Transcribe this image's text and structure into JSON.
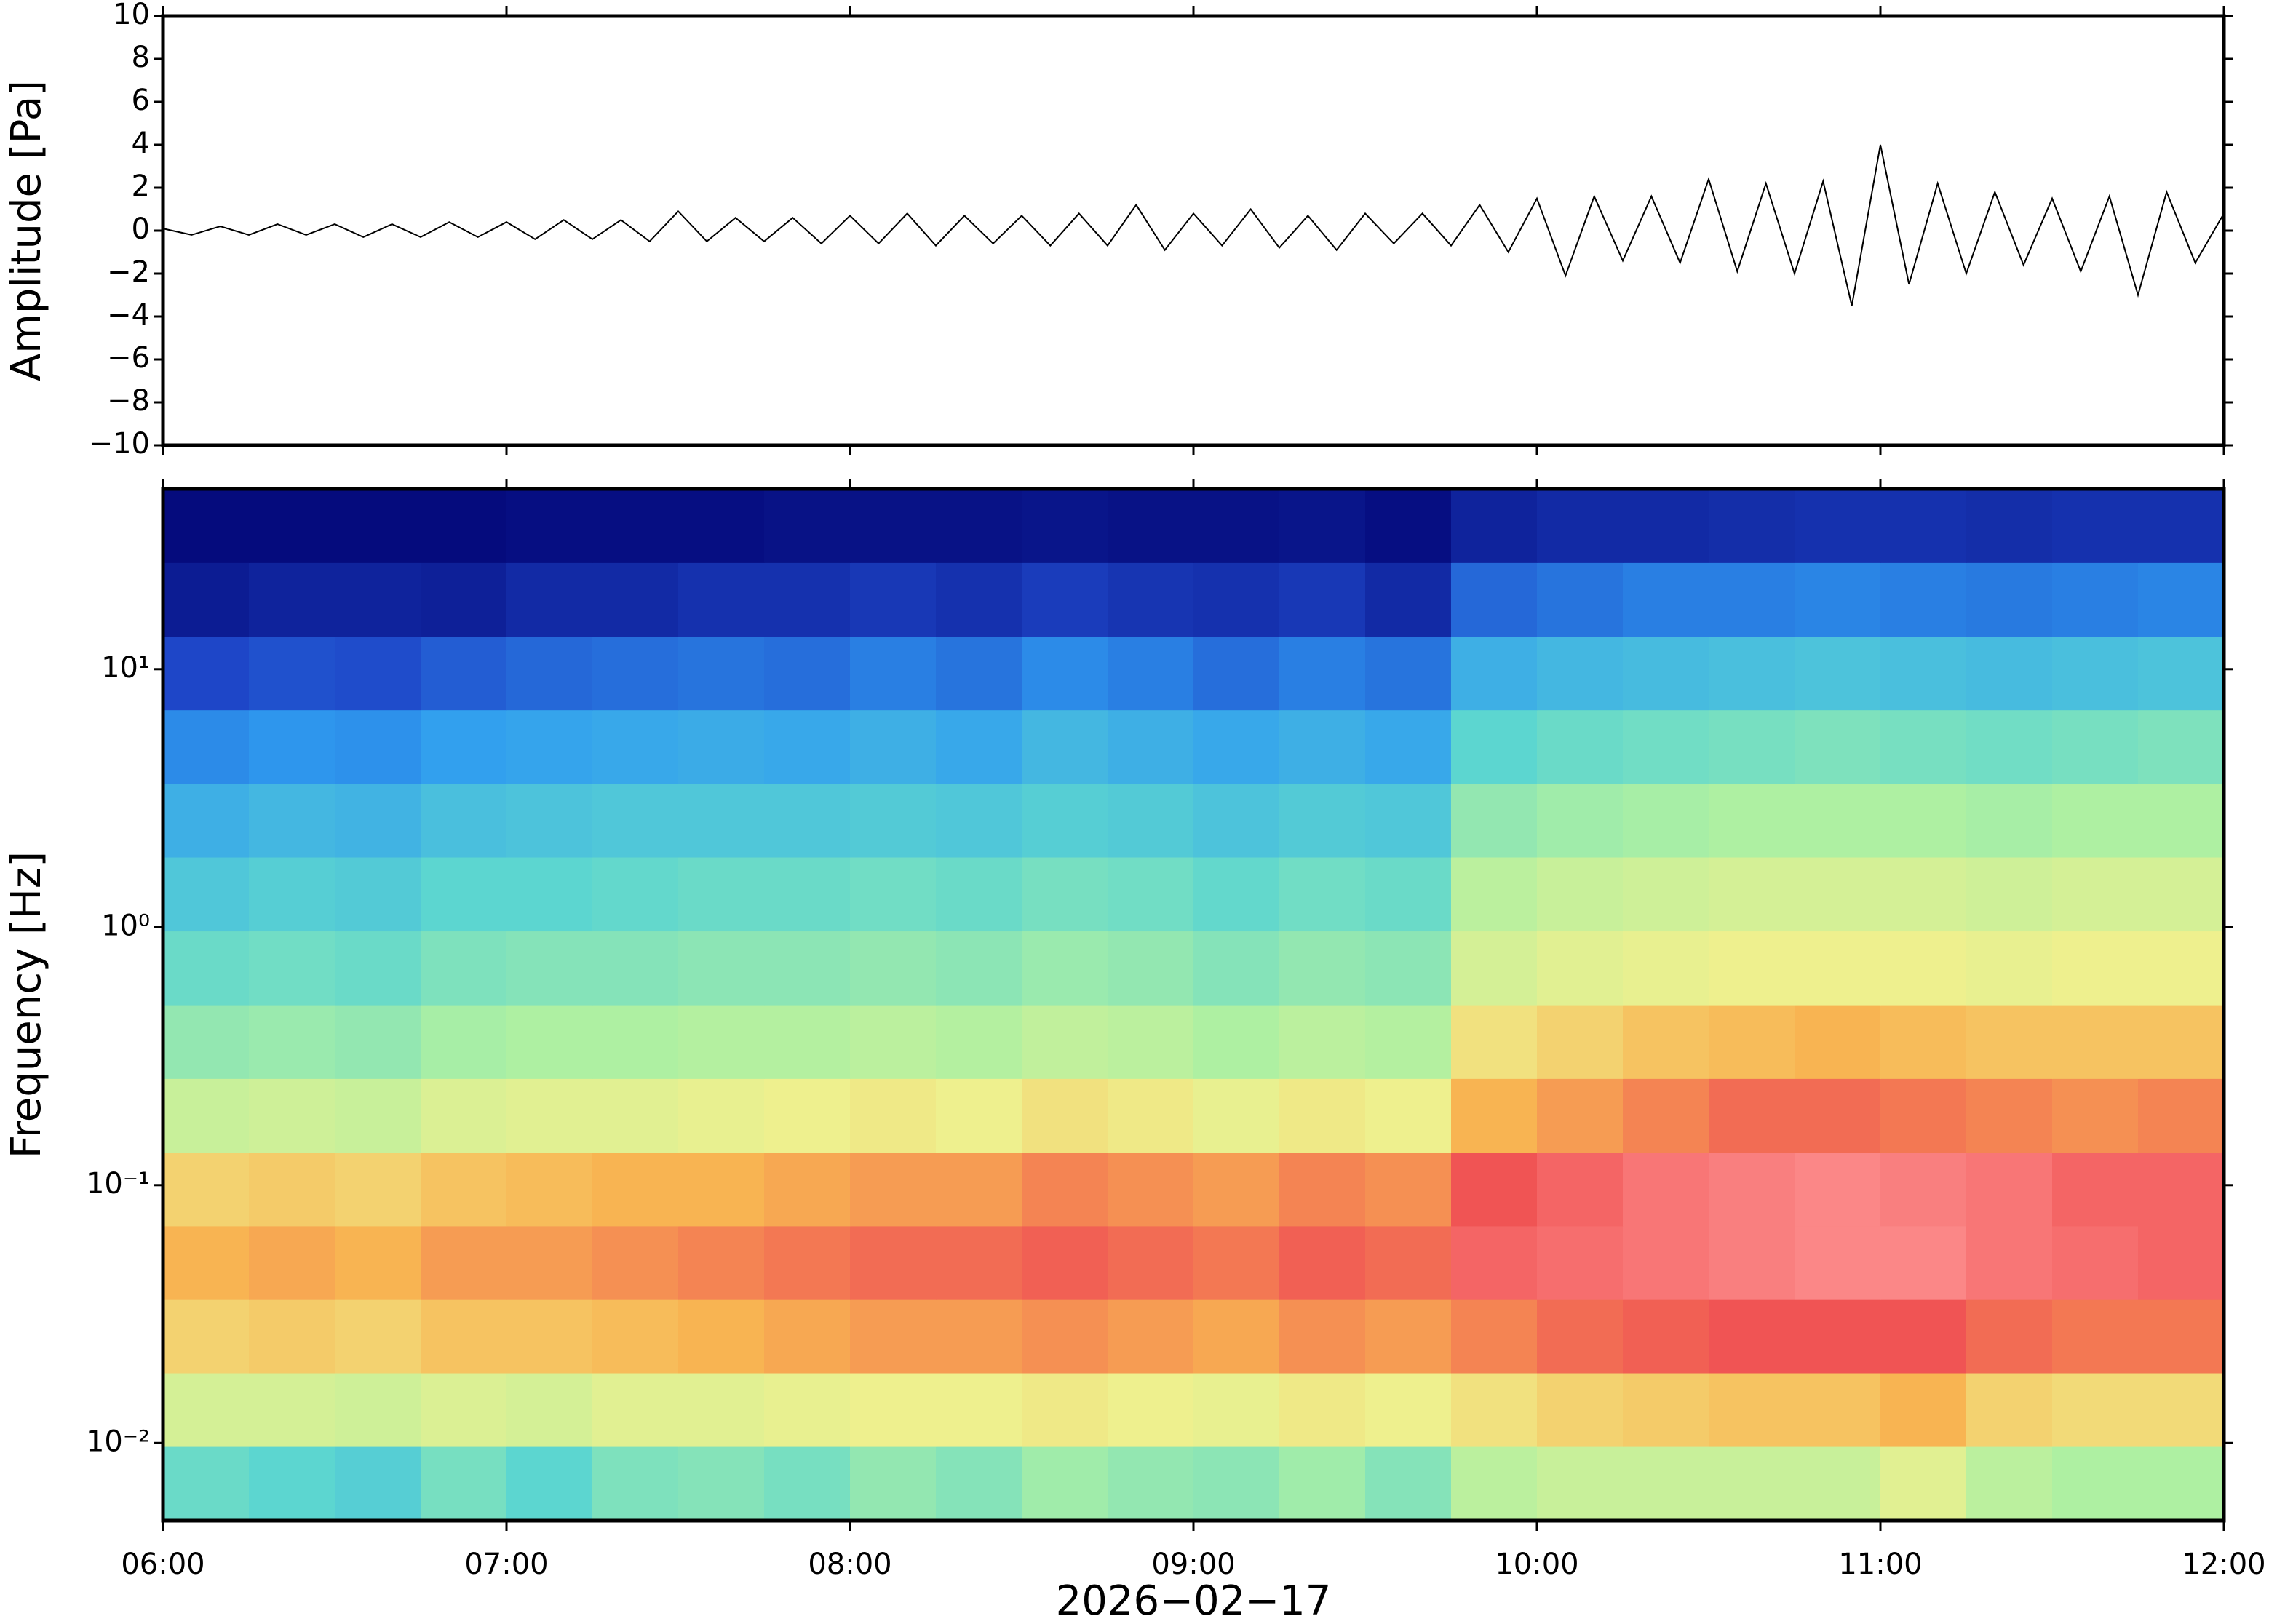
{
  "chart_data": [
    {
      "type": "line",
      "ylabel": "Amplitude [Pa]",
      "color": "#000000",
      "x": [
        0,
        5,
        10,
        15,
        20,
        25,
        30,
        35,
        40,
        45,
        50,
        55,
        60,
        65,
        70,
        75,
        80,
        85,
        90,
        95,
        100,
        105,
        110,
        115,
        120,
        125,
        130,
        135,
        140,
        145,
        150,
        155,
        160,
        165,
        170,
        175,
        180,
        185,
        190,
        195,
        200,
        205,
        210,
        215,
        220,
        225,
        230,
        235,
        240,
        245,
        250,
        255,
        260,
        265,
        270,
        275,
        280,
        285,
        290,
        295,
        300,
        305,
        310,
        315,
        320,
        325,
        330,
        335,
        340,
        345,
        350,
        355,
        360
      ],
      "values": [
        0.1,
        -0.2,
        0.2,
        -0.2,
        0.3,
        -0.2,
        0.3,
        -0.3,
        0.3,
        -0.3,
        0.4,
        -0.3,
        0.4,
        -0.4,
        0.5,
        -0.4,
        0.5,
        -0.5,
        0.9,
        -0.5,
        0.6,
        -0.5,
        0.6,
        -0.6,
        0.7,
        -0.6,
        0.8,
        -0.7,
        0.7,
        -0.6,
        0.7,
        -0.7,
        0.8,
        -0.7,
        1.2,
        -0.9,
        0.8,
        -0.7,
        1.0,
        -0.8,
        0.7,
        -0.9,
        0.8,
        -0.6,
        0.8,
        -0.7,
        1.2,
        -1.0,
        1.5,
        -2.1,
        1.6,
        -1.4,
        1.6,
        -1.5,
        2.4,
        -1.9,
        2.2,
        -2.0,
        2.3,
        -3.5,
        4.0,
        -2.5,
        2.2,
        -2.0,
        1.8,
        -1.6,
        1.5,
        -1.9,
        1.6,
        -3.0,
        1.8,
        -1.5,
        0.8
      ],
      "xlim": [
        0,
        360
      ],
      "xticks": [
        0,
        60,
        120,
        180,
        240,
        300,
        360
      ],
      "ylim": [
        -10,
        10
      ],
      "yticks": [
        {
          "value": -10,
          "label": "−10"
        },
        {
          "value": -8,
          "label": "−8"
        },
        {
          "value": -6,
          "label": "−6"
        },
        {
          "value": -4,
          "label": "−4"
        },
        {
          "value": -2,
          "label": "−2"
        },
        0,
        2,
        4,
        6,
        8,
        10
      ]
    },
    {
      "type": "heatmap",
      "ylabel": "Frequency [Hz]",
      "xlabel": "2026−02−17",
      "log_y": true,
      "x": [
        0,
        15,
        30,
        45,
        60,
        75,
        90,
        105,
        120,
        135,
        150,
        165,
        180,
        195,
        210,
        225,
        240,
        255,
        270,
        285,
        300,
        315,
        330,
        345,
        360
      ],
      "y": [
        0.005,
        0.0097,
        0.0187,
        0.036,
        0.0695,
        0.134,
        0.259,
        0.5,
        0.967,
        1.87,
        3.6,
        6.96,
        13.4,
        25.9,
        50
      ],
      "z": [
        [
          52,
          50,
          48,
          54,
          50,
          55,
          56,
          54,
          58,
          56,
          60,
          58,
          57,
          60,
          56,
          64,
          66,
          66,
          66,
          66,
          70,
          64,
          62,
          62
        ],
        [
          68,
          68,
          67,
          69,
          68,
          70,
          70,
          71,
          72,
          72,
          73,
          72,
          71,
          73,
          72,
          74,
          76,
          77,
          78,
          78,
          80,
          76,
          75,
          75
        ],
        [
          76,
          77,
          76,
          78,
          78,
          79,
          80,
          81,
          82,
          82,
          83,
          82,
          81,
          83,
          82,
          84,
          86,
          87,
          88,
          88,
          88,
          86,
          85,
          85
        ],
        [
          80,
          81,
          80,
          82,
          82,
          83,
          84,
          85,
          86,
          86,
          87,
          86,
          85,
          87,
          86,
          90,
          91,
          92,
          93,
          94,
          94,
          92,
          91,
          90
        ],
        [
          76,
          77,
          76,
          78,
          79,
          80,
          80,
          81,
          82,
          82,
          84,
          83,
          82,
          84,
          83,
          88,
          90,
          92,
          93,
          94,
          93,
          92,
          90,
          90
        ],
        [
          66,
          67,
          66,
          69,
          70,
          70,
          71,
          72,
          73,
          72,
          74,
          73,
          71,
          73,
          72,
          80,
          82,
          84,
          86,
          86,
          85,
          84,
          83,
          84
        ],
        [
          58,
          59,
          58,
          61,
          62,
          62,
          63,
          63,
          64,
          63,
          65,
          64,
          62,
          64,
          63,
          74,
          76,
          78,
          79,
          80,
          79,
          78,
          78,
          78
        ],
        [
          52,
          53,
          52,
          55,
          56,
          56,
          57,
          57,
          58,
          57,
          59,
          58,
          56,
          58,
          57,
          68,
          70,
          71,
          72,
          72,
          72,
          71,
          72,
          72
        ],
        [
          46,
          48,
          47,
          50,
          50,
          51,
          52,
          52,
          53,
          52,
          54,
          53,
          51,
          53,
          52,
          64,
          66,
          67,
          68,
          68,
          68,
          67,
          68,
          68
        ],
        [
          40,
          42,
          41,
          44,
          45,
          46,
          46,
          46,
          47,
          46,
          48,
          47,
          45,
          47,
          46,
          58,
          60,
          61,
          62,
          62,
          62,
          61,
          62,
          62
        ],
        [
          32,
          34,
          33,
          36,
          37,
          38,
          39,
          38,
          40,
          38,
          42,
          40,
          38,
          40,
          38,
          50,
          52,
          53,
          54,
          55,
          54,
          53,
          54,
          55
        ],
        [
          20,
          22,
          21,
          24,
          26,
          27,
          28,
          27,
          30,
          28,
          32,
          30,
          27,
          30,
          28,
          40,
          42,
          43,
          44,
          45,
          44,
          43,
          44,
          45
        ],
        [
          8,
          10,
          10,
          9,
          12,
          12,
          14,
          14,
          16,
          14,
          17,
          15,
          14,
          16,
          12,
          26,
          28,
          30,
          30,
          31,
          30,
          29,
          30,
          31
        ],
        [
          3,
          3,
          3,
          3,
          4,
          4,
          4,
          5,
          5,
          5,
          6,
          5,
          5,
          6,
          4,
          10,
          12,
          12,
          13,
          14,
          14,
          13,
          14,
          14
        ]
      ],
      "colorscale": [
        [
          0,
          "#000070"
        ],
        [
          20,
          "#1e46c8"
        ],
        [
          35,
          "#2f9cf0"
        ],
        [
          50,
          "#5cd6d0"
        ],
        [
          62,
          "#aef0a2"
        ],
        [
          72,
          "#eef08e"
        ],
        [
          80,
          "#f8b452"
        ],
        [
          88,
          "#f05454"
        ],
        [
          96,
          "#ff9898"
        ]
      ],
      "xlim": [
        0,
        360
      ],
      "xticks": [
        {
          "value": 0,
          "label": "06:00"
        },
        {
          "value": 60,
          "label": "07:00"
        },
        {
          "value": 120,
          "label": "08:00"
        },
        {
          "value": 180,
          "label": "09:00"
        },
        {
          "value": 240,
          "label": "10:00"
        },
        {
          "value": 300,
          "label": "11:00"
        },
        {
          "value": 360,
          "label": "12:00"
        }
      ],
      "ylim": [
        0.005,
        50
      ],
      "yticks": [
        {
          "value": 0.01,
          "label": "10⁻²"
        },
        {
          "value": 0.1,
          "label": "10⁻¹"
        },
        {
          "value": 1,
          "label": "10⁰"
        },
        {
          "value": 10,
          "label": "10¹"
        }
      ]
    }
  ]
}
